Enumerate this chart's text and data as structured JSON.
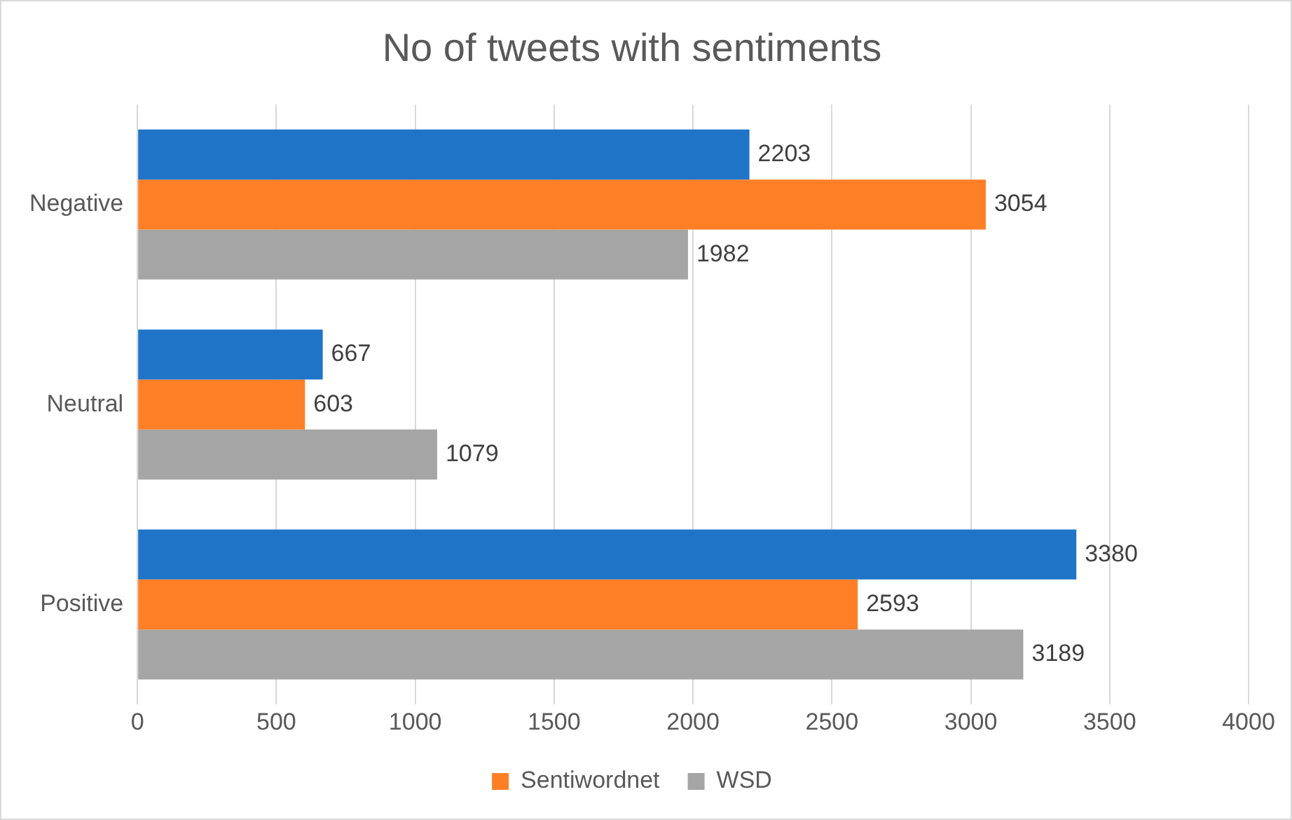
{
  "chart_data": {
    "type": "bar",
    "orientation": "horizontal",
    "title": "No of tweets with sentiments",
    "categories": [
      "Negative",
      "Neutral",
      "Positive"
    ],
    "series": [
      {
        "color": "#1f74c8",
        "values": [
          2203,
          667,
          3380
        ]
      },
      {
        "name": "Sentiwordnet",
        "color": "#ff7f27",
        "values": [
          3054,
          603,
          2593
        ]
      },
      {
        "name": "WSD",
        "color": "#a5a5a5",
        "values": [
          1982,
          1079,
          3189
        ]
      }
    ],
    "xlim": [
      0,
      4000
    ],
    "xticks": [
      0,
      500,
      1000,
      1500,
      2000,
      2500,
      3000,
      3500,
      4000
    ],
    "grid": "x",
    "legend": "bottom",
    "data_labels": true
  }
}
